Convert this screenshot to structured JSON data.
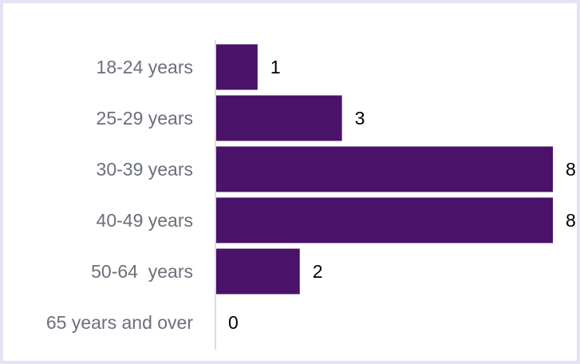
{
  "chart_data": {
    "type": "bar",
    "orientation": "horizontal",
    "categories": [
      "18-24 years",
      "25-29 years",
      "30-39 years",
      "40-49 years",
      "50-64  years",
      "65 years and over"
    ],
    "values": [
      1,
      3,
      8,
      8,
      2,
      0
    ],
    "color": "#4a1268"
  }
}
